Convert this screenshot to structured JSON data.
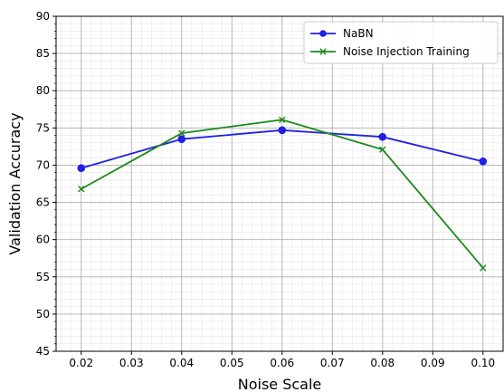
{
  "chart_data": {
    "type": "line",
    "xlabel": "Noise Scale",
    "ylabel": "Validation Accuracy",
    "x": [
      0.02,
      0.04,
      0.06,
      0.08,
      0.1
    ],
    "xlim": [
      0.015,
      0.104
    ],
    "ylim": [
      45,
      90
    ],
    "xticks": [
      "0.02",
      "0.03",
      "0.04",
      "0.05",
      "0.06",
      "0.07",
      "0.08",
      "0.09",
      "0.10"
    ],
    "xtick_values": [
      0.02,
      0.03,
      0.04,
      0.05,
      0.06,
      0.07,
      0.08,
      0.09,
      0.1
    ],
    "yticks": [
      "45",
      "50",
      "55",
      "60",
      "65",
      "70",
      "75",
      "80",
      "85",
      "90"
    ],
    "ytick_values": [
      45,
      50,
      55,
      60,
      65,
      70,
      75,
      80,
      85,
      90
    ],
    "grid": true,
    "minor_grid": true,
    "legend_position": "top-right",
    "series": [
      {
        "name": "NaBN",
        "color": "#1f1fe6",
        "marker": "circle",
        "values": [
          69.6,
          73.5,
          74.7,
          73.8,
          70.5
        ]
      },
      {
        "name": "Noise Injection Training",
        "color": "#1a8a1a",
        "marker": "x",
        "values": [
          66.8,
          74.3,
          76.1,
          72.1,
          56.2
        ]
      }
    ]
  }
}
